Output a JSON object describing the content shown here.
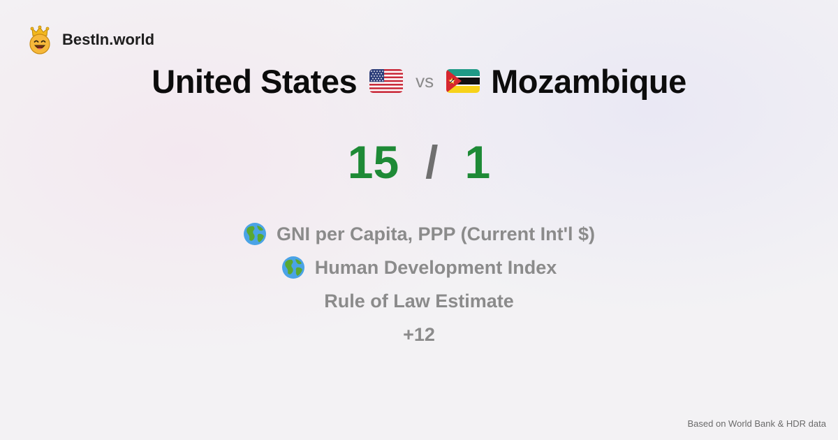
{
  "brand": {
    "name": "BestIn.world",
    "logo_icon": "smiling-crown-face-icon"
  },
  "comparison": {
    "left_country": "United States",
    "left_flag": "us-flag-icon",
    "vs_label": "vs",
    "right_country": "Mozambique",
    "right_flag": "mozambique-flag-icon"
  },
  "score": {
    "left": "15",
    "separator": "/",
    "right": "1",
    "color": "#1e8a36"
  },
  "metrics": [
    {
      "label": "GNI per Capita, PPP (Current Int'l $)",
      "icon": "globe-icon"
    },
    {
      "label": "Human Development Index",
      "icon": "globe-icon"
    },
    {
      "label": "Rule of Law Estimate",
      "icon": ""
    },
    {
      "label": "+12",
      "icon": ""
    }
  ],
  "footer": {
    "source": "Based on World Bank & HDR data"
  }
}
